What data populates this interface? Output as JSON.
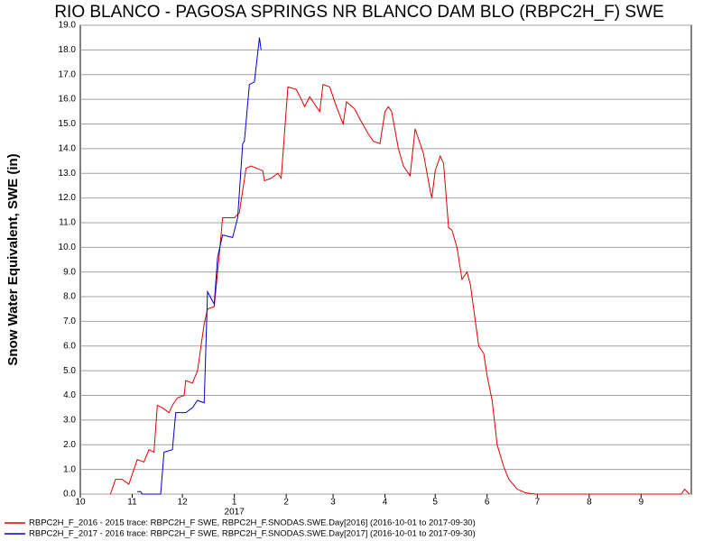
{
  "chart_data": {
    "type": "line",
    "title": "RIO BLANCO - PAGOSA SPRINGS NR  BLANCO DAM BLO (RBPC2H_F) SWE",
    "y_label": "Snow Water Equivalent, SWE (in)",
    "x_annotation": "2017",
    "xlim": [
      0,
      365
    ],
    "xticks": [
      {
        "value": 0,
        "label": "10"
      },
      {
        "value": 31,
        "label": "11"
      },
      {
        "value": 61,
        "label": "12"
      },
      {
        "value": 92,
        "label": "1"
      },
      {
        "value": 123,
        "label": "2"
      },
      {
        "value": 151,
        "label": "3"
      },
      {
        "value": 182,
        "label": "4"
      },
      {
        "value": 212,
        "label": "5"
      },
      {
        "value": 243,
        "label": "6"
      },
      {
        "value": 273,
        "label": "7"
      },
      {
        "value": 304,
        "label": "8"
      },
      {
        "value": 335,
        "label": "9"
      }
    ],
    "ylim": [
      0,
      19
    ],
    "yticks": [
      {
        "value": 0,
        "label": "0.0"
      },
      {
        "value": 1,
        "label": "1.0"
      },
      {
        "value": 2,
        "label": "2.0"
      },
      {
        "value": 3,
        "label": "3.0"
      },
      {
        "value": 4,
        "label": "4.0"
      },
      {
        "value": 5,
        "label": "5.0"
      },
      {
        "value": 6,
        "label": "6.0"
      },
      {
        "value": 7,
        "label": "7.0"
      },
      {
        "value": 8,
        "label": "8.0"
      },
      {
        "value": 9,
        "label": "9.0"
      },
      {
        "value": 10,
        "label": "10.0"
      },
      {
        "value": 11,
        "label": "11.0"
      },
      {
        "value": 12,
        "label": "12.0"
      },
      {
        "value": 13,
        "label": "13.0"
      },
      {
        "value": 14,
        "label": "14.0"
      },
      {
        "value": 15,
        "label": "15.0"
      },
      {
        "value": 16,
        "label": "16.0"
      },
      {
        "value": 17,
        "label": "17.0"
      },
      {
        "value": 18,
        "label": "18.0"
      },
      {
        "value": 19,
        "label": "19.0"
      }
    ],
    "grid": true,
    "series": [
      {
        "name": "RBPC2H_F_2016 - 2015 trace: RBPC2H_F SWE, RBPC2H_F.SNODAS.SWE.Day[2016] (2016-10-01 to 2017-09-30)",
        "color": "#e00000",
        "x": [
          18,
          21,
          25,
          29,
          34,
          38,
          41,
          44,
          46,
          49,
          53,
          55,
          58,
          62,
          63,
          67,
          70,
          74,
          76,
          80,
          83,
          85,
          92,
          95,
          99,
          102,
          109,
          110,
          114,
          118,
          120,
          124,
          129,
          132,
          134,
          137,
          143,
          145,
          149,
          153,
          157,
          159,
          164,
          167,
          172,
          175,
          179,
          182,
          184,
          186,
          190,
          193,
          197,
          200,
          203,
          205,
          209,
          210,
          212,
          215,
          217,
          220,
          222,
          225,
          228,
          231,
          233,
          236,
          238,
          241,
          243,
          246,
          249,
          253,
          256,
          261,
          266,
          272,
          359,
          361,
          364
        ],
        "values": [
          0,
          0.6,
          0.6,
          0.4,
          1.4,
          1.3,
          1.8,
          1.7,
          3.6,
          3.5,
          3.3,
          3.6,
          3.9,
          4.0,
          4.6,
          4.5,
          5.0,
          6.9,
          7.5,
          7.6,
          9.7,
          11.2,
          11.2,
          11.4,
          13.2,
          13.3,
          13.1,
          12.7,
          12.8,
          13.0,
          12.8,
          16.5,
          16.4,
          16.0,
          15.7,
          16.1,
          15.5,
          16.6,
          16.5,
          15.7,
          15.0,
          15.9,
          15.6,
          15.2,
          14.6,
          14.3,
          14.2,
          15.5,
          15.7,
          15.5,
          14.0,
          13.3,
          12.9,
          14.8,
          14.2,
          13.8,
          12.3,
          12.0,
          13.1,
          13.7,
          13.4,
          10.8,
          10.7,
          10.0,
          8.7,
          9.0,
          8.5,
          7.0,
          6.0,
          5.7,
          4.8,
          3.8,
          2.0,
          1.1,
          0.6,
          0.2,
          0.05,
          0,
          0,
          0.2,
          0
        ]
      },
      {
        "name": "RBPC2H_F_2017 - 2016 trace: RBPC2H_F SWE, RBPC2H_F.SNODAS.SWE.Day[2017] (2016-10-01 to 2017-09-30)",
        "color": "#0000d0",
        "x": [
          34,
          36,
          37,
          48,
          50,
          55,
          57,
          63,
          67,
          70,
          74,
          76,
          80,
          82,
          85,
          91,
          94,
          97,
          98,
          101,
          104,
          107,
          108
        ],
        "values": [
          0.1,
          0.1,
          0,
          0,
          1.7,
          1.8,
          3.3,
          3.3,
          3.5,
          3.8,
          3.7,
          8.2,
          7.7,
          9.6,
          10.5,
          10.4,
          11.2,
          14.2,
          14.3,
          16.6,
          16.7,
          18.5,
          18.0
        ]
      }
    ]
  }
}
